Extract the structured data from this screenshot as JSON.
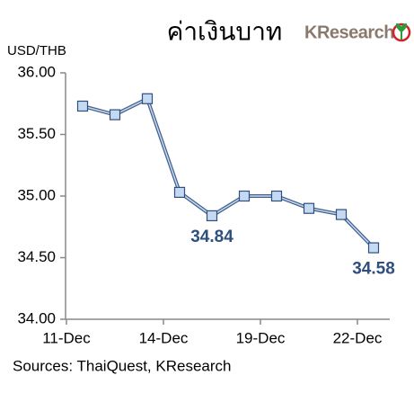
{
  "chart_data": {
    "type": "line",
    "title": "ค่าเงินบาท",
    "logo": "KResearch",
    "y_label": "USD/THB",
    "source": "Sources: ThaiQuest, KResearch",
    "categories": [
      "11-Dec",
      null,
      null,
      "14-Dec",
      null,
      null,
      "19-Dec",
      null,
      null,
      "22-Dec"
    ],
    "series": [
      {
        "name": "USD/THB",
        "color": "#2f4f7f",
        "marker_color": "#c5d9f1",
        "values": [
          35.73,
          35.66,
          35.79,
          35.03,
          34.84,
          35.0,
          35.0,
          34.9,
          34.85,
          34.58
        ],
        "value_labels": [
          null,
          null,
          null,
          null,
          "34.84",
          null,
          null,
          null,
          null,
          "34.58"
        ]
      }
    ],
    "ylim": [
      34.0,
      36.0
    ],
    "yticks": [
      {
        "value": 34.0,
        "label": "34.00"
      },
      {
        "value": 34.5,
        "label": "34.50"
      },
      {
        "value": 35.0,
        "label": "35.00"
      },
      {
        "value": 35.5,
        "label": "35.50"
      },
      {
        "value": 36.0,
        "label": "36.00"
      }
    ],
    "grid": false
  }
}
